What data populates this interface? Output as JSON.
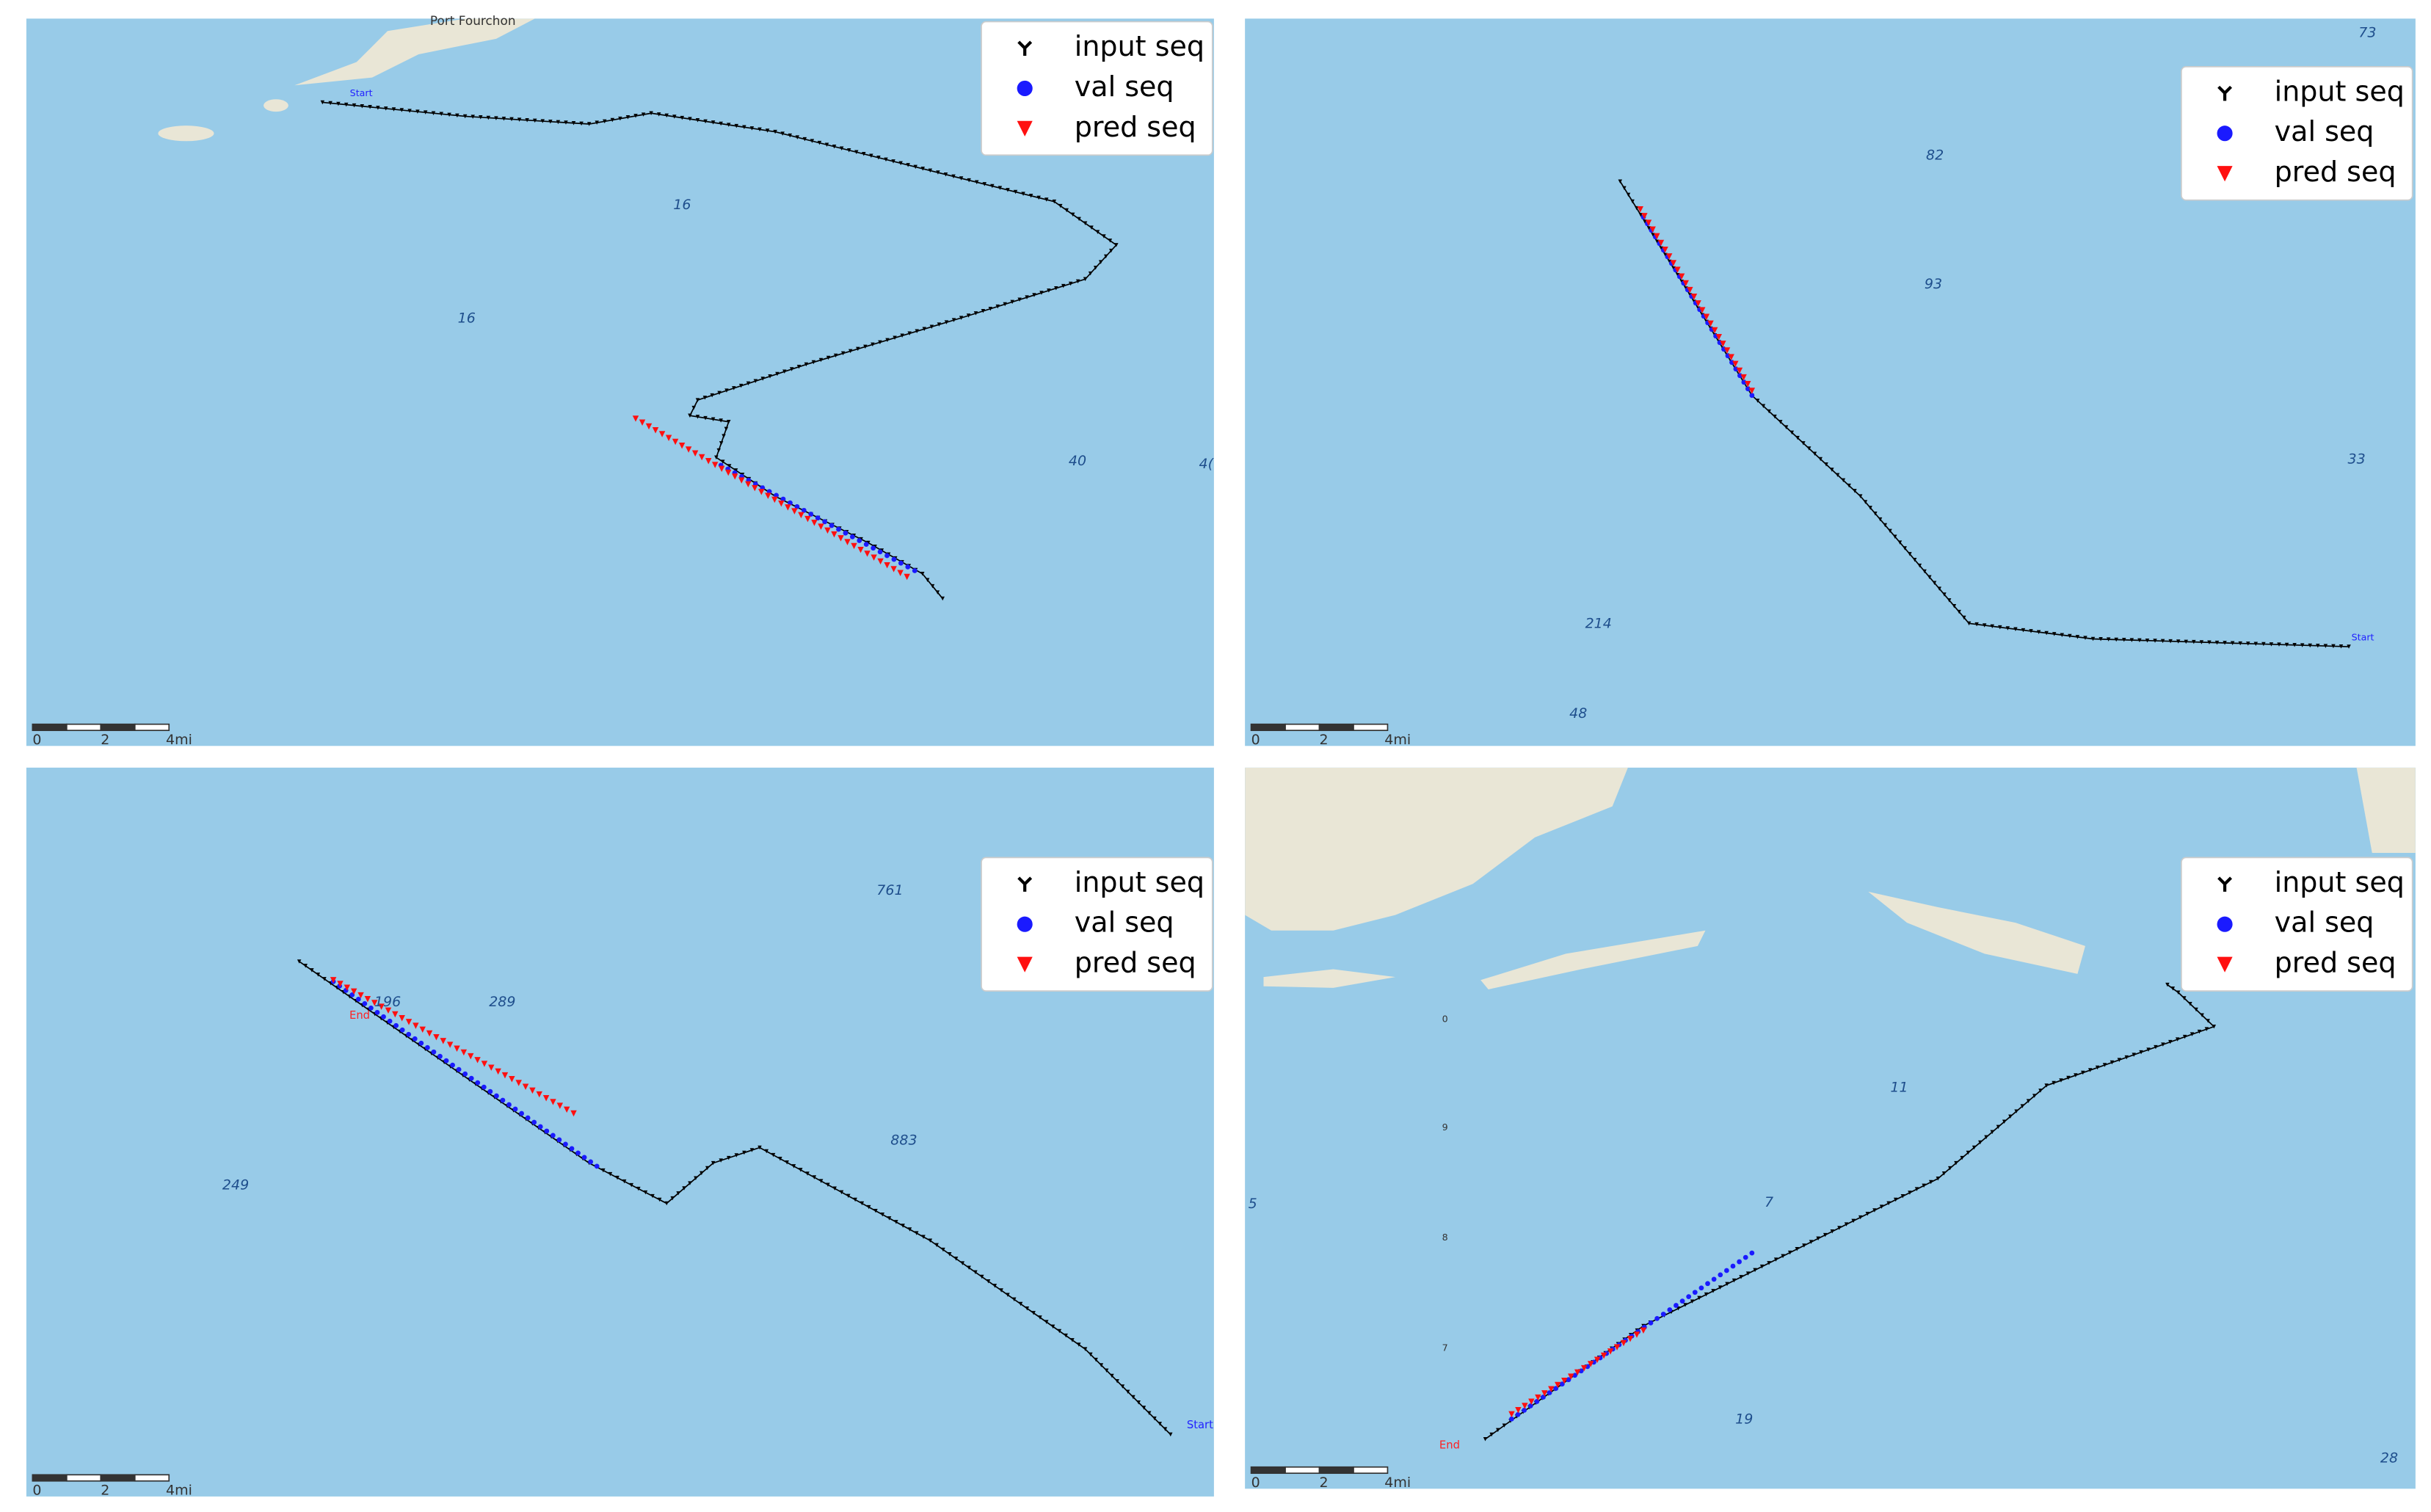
{
  "panels": [
    {
      "legend": [
        "input seq",
        "val seq",
        "pred seq"
      ],
      "labels": [
        "Port Fourchon",
        "Start",
        "16",
        "16",
        "40",
        "4("
      ],
      "scale": [
        "0",
        "2",
        "4mi"
      ]
    },
    {
      "legend": [
        "input seq",
        "val seq",
        "pred seq"
      ],
      "labels": [
        "73",
        "82",
        "93",
        "33",
        "214",
        "48",
        "Start"
      ],
      "scale": [
        "0",
        "2",
        "4mi"
      ]
    },
    {
      "legend": [
        "input seq",
        "val seq",
        "pred seq"
      ],
      "labels": [
        "761",
        "196",
        "289",
        "883",
        "249",
        "End",
        "Start"
      ],
      "scale": [
        "0",
        "2",
        "4mi"
      ]
    },
    {
      "legend": [
        "input seq",
        "val seq",
        "pred seq"
      ],
      "labels": [
        "11",
        "7",
        "19",
        "28",
        "5",
        "End",
        "0",
        "9",
        "8",
        "7"
      ],
      "scale": [
        "0",
        "2",
        "4mi"
      ]
    }
  ]
}
